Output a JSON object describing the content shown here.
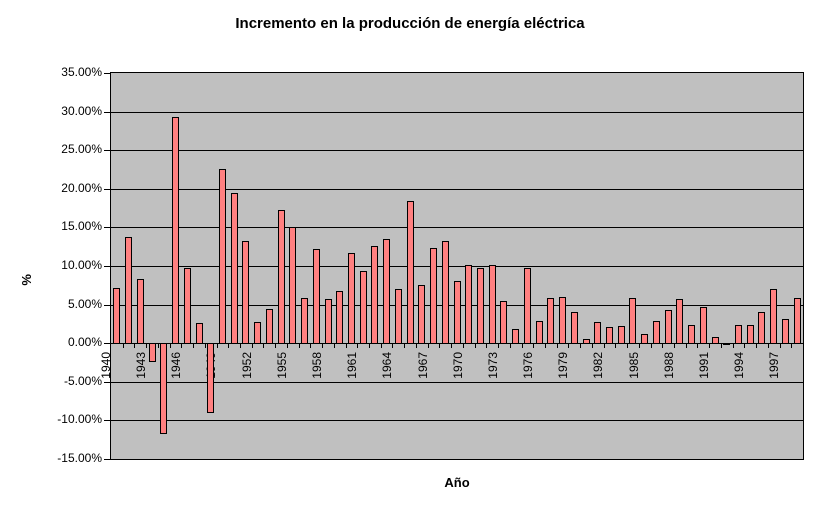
{
  "title": "Incremento en la producción de energía eléctrica",
  "axes": {
    "x_title": "Año",
    "y_title": "%",
    "y_tick_labels": [
      "35.00%",
      "30.00%",
      "25.00%",
      "20.00%",
      "15.00%",
      "10.00%",
      "5.00%",
      "0.00%",
      "-5.00%",
      "-10.00%",
      "-15.00%"
    ],
    "x_tick_labels": [
      "1940",
      "1943",
      "1946",
      "1949",
      "1952",
      "1955",
      "1958",
      "1961",
      "1964",
      "1967",
      "1970",
      "1973",
      "1976",
      "1979",
      "1982",
      "1985",
      "1988",
      "1991",
      "1994",
      "1997"
    ]
  },
  "colors": {
    "bar_fill": "#FF8080",
    "bar_border": "#000000",
    "plot_background": "#C0C0C0",
    "chart_background": "#FFFFFF",
    "gridline": "#000000",
    "text": "#000000"
  },
  "chart_data": {
    "type": "bar",
    "title": "Incremento en la producción de energía eléctrica",
    "xlabel": "Año",
    "ylabel": "%",
    "ylim": [
      -15,
      35
    ],
    "y_step": 5,
    "grid": true,
    "legend": "none",
    "categories": [
      1940,
      1941,
      1942,
      1943,
      1944,
      1945,
      1946,
      1947,
      1948,
      1949,
      1950,
      1951,
      1952,
      1953,
      1954,
      1955,
      1956,
      1957,
      1958,
      1959,
      1960,
      1961,
      1962,
      1963,
      1964,
      1965,
      1966,
      1967,
      1968,
      1969,
      1970,
      1971,
      1972,
      1973,
      1974,
      1975,
      1976,
      1977,
      1978,
      1979,
      1980,
      1981,
      1982,
      1983,
      1984,
      1985,
      1986,
      1987,
      1988,
      1989,
      1990,
      1991,
      1992,
      1993,
      1994,
      1995,
      1996,
      1997,
      1998
    ],
    "values": [
      7.2,
      13.8,
      8.3,
      -2.4,
      -11.8,
      29.3,
      9.8,
      2.6,
      -9.0,
      22.6,
      19.5,
      13.3,
      2.8,
      4.4,
      17.2,
      15.0,
      5.9,
      12.2,
      5.7,
      6.8,
      11.7,
      9.4,
      12.6,
      13.5,
      7.0,
      18.4,
      7.5,
      12.4,
      13.2,
      8.0,
      10.2,
      9.8,
      10.2,
      5.5,
      1.8,
      9.7,
      2.9,
      5.8,
      6.0,
      4.1,
      0.5,
      2.7,
      2.1,
      2.2,
      5.8,
      1.2,
      2.9,
      4.3,
      5.7,
      2.3,
      4.7,
      0.8,
      -0.3,
      2.3,
      2.3,
      4.1,
      7.0,
      3.1,
      5.9
    ]
  }
}
